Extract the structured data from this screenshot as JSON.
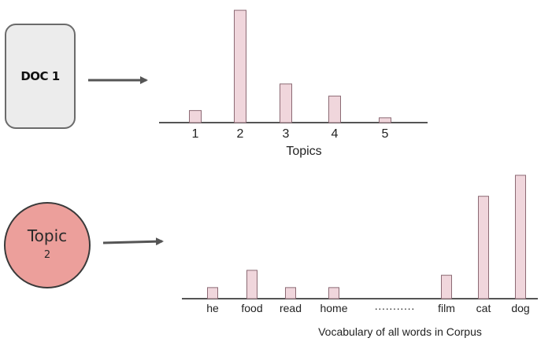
{
  "doc_box": {
    "label": "DOC 1"
  },
  "topic_node": {
    "label": "Topic",
    "number": "2"
  },
  "chart_data": [
    {
      "type": "bar",
      "categories": [
        "1",
        "2",
        "3",
        "4",
        "5"
      ],
      "values": [
        10,
        93,
        32,
        22,
        4
      ],
      "xlabel": "Topics",
      "ylim": [
        0,
        95
      ],
      "grid": false,
      "bar_color": "#f0d6dc"
    },
    {
      "type": "bar",
      "categories": [
        "he",
        "food",
        "read",
        "home",
        "···········",
        "film",
        "cat",
        "dog"
      ],
      "values": [
        9,
        23,
        9,
        9,
        null,
        19,
        83,
        100
      ],
      "xlabel": "Vocabulary of all words in Corpus",
      "ylim": [
        0,
        100
      ],
      "grid": false,
      "bar_color": "#f0d6dc"
    }
  ],
  "colors": {
    "arrow": "#555555",
    "axis": "#555555",
    "bar_stroke": "#8c6a74",
    "topic_fill": "#ec9f9b",
    "doc_fill": "#ececec"
  }
}
